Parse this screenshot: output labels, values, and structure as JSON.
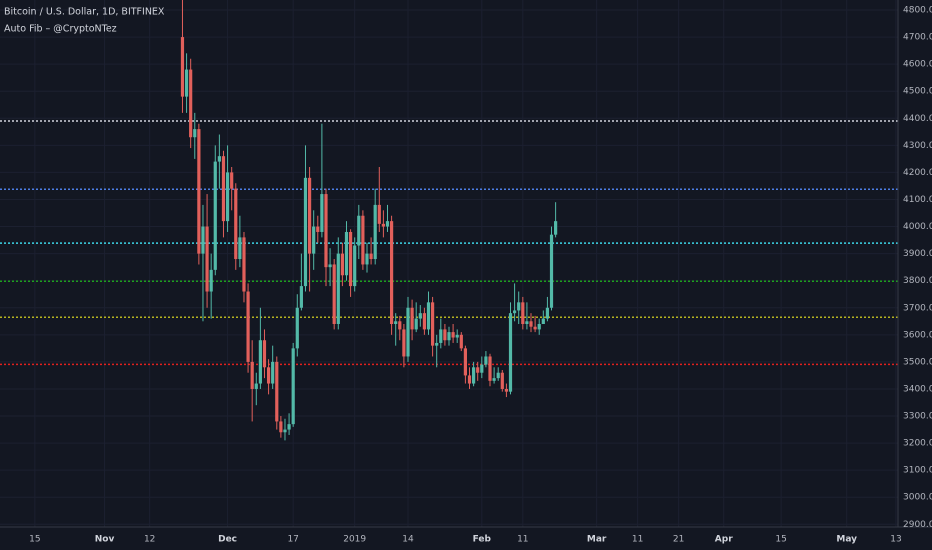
{
  "chart_data": {
    "type": "candlestick",
    "title": "Bitcoin / U.S. Dollar, 1D, BITFINEX",
    "subtitle": "Auto Fib – @CryptoNTez",
    "up_color": "#53b9a8",
    "down_color": "#e2605b",
    "grid": true,
    "xlim": [
      -25.5,
      193.5
    ],
    "xticks": [
      {
        "value": -17,
        "label": "15"
      },
      {
        "value": 0,
        "label": "Nov"
      },
      {
        "value": 11,
        "label": "12"
      },
      {
        "value": 30,
        "label": "Dec"
      },
      {
        "value": 46,
        "label": "17"
      },
      {
        "value": 61,
        "label": "2019"
      },
      {
        "value": 74,
        "label": "14"
      },
      {
        "value": 92,
        "label": "Feb"
      },
      {
        "value": 102,
        "label": "11"
      },
      {
        "value": 120,
        "label": "Mar"
      },
      {
        "value": 130,
        "label": "11"
      },
      {
        "value": 140,
        "label": "21"
      },
      {
        "value": 151,
        "label": "Apr"
      },
      {
        "value": 165,
        "label": "15"
      },
      {
        "value": 181,
        "label": "May"
      },
      {
        "value": 193,
        "label": "13"
      }
    ],
    "ylim": [
      2890,
      4837
    ],
    "yticks": [
      {
        "value": 2900,
        "label": "2900.0"
      },
      {
        "value": 3000,
        "label": "3000.0"
      },
      {
        "value": 3100,
        "label": "3100.0"
      },
      {
        "value": 3200,
        "label": "3200.0"
      },
      {
        "value": 3300,
        "label": "3300.0"
      },
      {
        "value": 3400,
        "label": "3400.0"
      },
      {
        "value": 3500,
        "label": "3500.0"
      },
      {
        "value": 3600,
        "label": "3600.0"
      },
      {
        "value": 3700,
        "label": "3700.0"
      },
      {
        "value": 3800,
        "label": "3800.0"
      },
      {
        "value": 3900,
        "label": "3900.0"
      },
      {
        "value": 4000,
        "label": "4000.0"
      },
      {
        "value": 4100,
        "label": "4100.0"
      },
      {
        "value": 4200,
        "label": "4200.0"
      },
      {
        "value": 4300,
        "label": "4300.0"
      },
      {
        "value": 4400,
        "label": "4400.0"
      },
      {
        "value": 4500,
        "label": "4500.0"
      },
      {
        "value": 4600,
        "label": "4600.0"
      },
      {
        "value": 4700,
        "label": "4700.0"
      },
      {
        "value": 4800,
        "label": "4800.0"
      }
    ],
    "levels": [
      {
        "value": 4390,
        "color": "#d1d4dc"
      },
      {
        "value": 4138,
        "color": "#4c7fe8"
      },
      {
        "value": 3939,
        "color": "#3dd6e8"
      },
      {
        "value": 3798,
        "color": "#1ea01e"
      },
      {
        "value": 3665,
        "color": "#b5b320"
      },
      {
        "value": 3491,
        "color": "#e0201e"
      }
    ],
    "x": [
      19,
      20,
      21,
      22,
      23,
      24,
      25,
      26,
      27,
      28,
      29,
      30,
      31,
      32,
      33,
      34,
      35,
      36,
      37,
      38,
      39,
      40,
      41,
      42,
      43,
      44,
      45,
      46,
      47,
      48,
      49,
      50,
      51,
      52,
      53,
      54,
      55,
      56,
      57,
      58,
      59,
      60,
      61,
      62,
      63,
      64,
      65,
      66,
      67,
      68,
      69,
      70,
      71,
      72,
      73,
      74,
      75,
      76,
      77,
      78,
      79,
      80,
      81,
      82,
      83,
      84,
      85,
      86,
      87,
      88,
      89,
      90,
      91,
      92,
      93,
      94,
      95,
      96,
      97,
      98,
      99,
      100,
      101,
      102,
      103,
      104,
      105,
      106,
      107,
      108,
      109,
      110
    ],
    "open": [
      4700,
      4480,
      4580,
      4330,
      4360,
      3900,
      4000,
      3760,
      3840,
      4240,
      4260,
      4020,
      4200,
      4140,
      3880,
      3960,
      3760,
      3500,
      3400,
      3420,
      3580,
      3480,
      3420,
      3500,
      3280,
      3240,
      3250,
      3270,
      3550,
      3700,
      3780,
      4180,
      3900,
      4000,
      3980,
      4120,
      3850,
      3860,
      3640,
      3900,
      3820,
      3980,
      3780,
      3930,
      4040,
      3860,
      3900,
      3880,
      4080,
      4010,
      4000,
      4020,
      3640,
      3650,
      3620,
      3520,
      3700,
      3620,
      3660,
      3680,
      3620,
      3720,
      3560,
      3570,
      3620,
      3580,
      3610,
      3590,
      3600,
      3550,
      3450,
      3420,
      3480,
      3460,
      3490,
      3520,
      3430,
      3440,
      3460,
      3400,
      3390,
      3680,
      3690,
      3720,
      3640,
      3650,
      3630,
      3620,
      3640,
      3660,
      3700,
      3970
    ],
    "high": [
      4850,
      4640,
      4620,
      4420,
      4380,
      4080,
      4120,
      3900,
      4300,
      4340,
      4280,
      4300,
      4220,
      4160,
      4040,
      3980,
      3790,
      3580,
      3460,
      3700,
      3620,
      3510,
      3560,
      3520,
      3300,
      3290,
      3310,
      3570,
      3750,
      3900,
      4300,
      4220,
      4060,
      4040,
      4380,
      4140,
      3920,
      3880,
      3960,
      3940,
      4020,
      3990,
      3960,
      4080,
      4060,
      3940,
      3960,
      4140,
      4220,
      4060,
      4080,
      4040,
      3680,
      3670,
      3640,
      3740,
      3730,
      3720,
      3710,
      3700,
      3760,
      3740,
      3600,
      3660,
      3640,
      3630,
      3640,
      3620,
      3610,
      3560,
      3480,
      3500,
      3500,
      3520,
      3540,
      3530,
      3480,
      3480,
      3470,
      3420,
      3720,
      3790,
      3760,
      3740,
      3720,
      3680,
      3670,
      3660,
      3690,
      3740,
      4000,
      4090
    ],
    "low": [
      4420,
      4420,
      4290,
      4250,
      3860,
      3650,
      3700,
      3660,
      3820,
      4140,
      3960,
      3980,
      4060,
      3840,
      3850,
      3720,
      3460,
      3280,
      3340,
      3400,
      3440,
      3380,
      3400,
      3250,
      3220,
      3210,
      3230,
      3260,
      3520,
      3690,
      3760,
      3760,
      3840,
      3940,
      3960,
      3780,
      3780,
      3620,
      3620,
      3780,
      3800,
      3740,
      3760,
      3880,
      3840,
      3830,
      3860,
      3860,
      3980,
      3960,
      3980,
      3600,
      3560,
      3580,
      3480,
      3500,
      3580,
      3610,
      3630,
      3600,
      3600,
      3520,
      3480,
      3550,
      3560,
      3560,
      3570,
      3570,
      3540,
      3420,
      3400,
      3410,
      3430,
      3440,
      3480,
      3410,
      3420,
      3430,
      3390,
      3370,
      3380,
      3650,
      3640,
      3620,
      3620,
      3610,
      3610,
      3600,
      3640,
      3650,
      3690,
      3960
    ],
    "close": [
      4480,
      4580,
      4330,
      4360,
      3900,
      4000,
      3760,
      3840,
      4240,
      4260,
      4020,
      4200,
      4140,
      3880,
      3960,
      3760,
      3500,
      3400,
      3420,
      3580,
      3480,
      3420,
      3500,
      3280,
      3240,
      3250,
      3270,
      3550,
      3700,
      3780,
      4180,
      3900,
      4000,
      3980,
      4120,
      3850,
      3860,
      3640,
      3900,
      3820,
      3980,
      3780,
      3930,
      4040,
      3860,
      3900,
      3880,
      4080,
      4010,
      4000,
      4020,
      3640,
      3650,
      3620,
      3520,
      3700,
      3620,
      3660,
      3680,
      3620,
      3720,
      3560,
      3570,
      3620,
      3580,
      3610,
      3590,
      3600,
      3550,
      3450,
      3420,
      3480,
      3460,
      3490,
      3520,
      3430,
      3440,
      3460,
      3400,
      3390,
      3680,
      3690,
      3720,
      3640,
      3650,
      3630,
      3620,
      3640,
      3660,
      3700,
      3970,
      4020
    ]
  }
}
